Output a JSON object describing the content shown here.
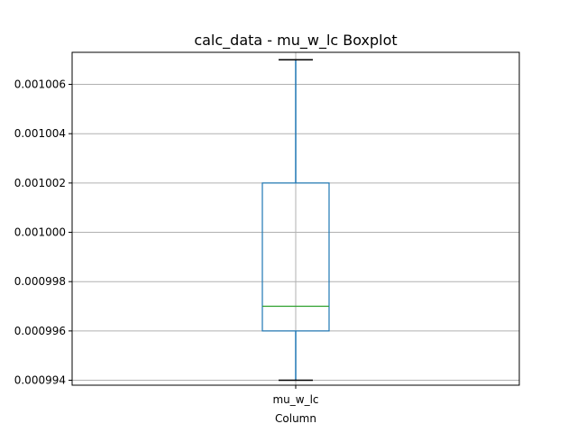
{
  "chart_data": {
    "type": "boxplot",
    "title": "calc_data - mu_w_lc Boxplot",
    "xlabel": "Column",
    "ylabel": "",
    "categories": [
      "mu_w_lc"
    ],
    "boxes": [
      {
        "name": "mu_w_lc",
        "whisker_low": 0.000994,
        "q1": 0.000996,
        "median": 0.000997,
        "q3": 0.001002,
        "whisker_high": 0.001007
      }
    ],
    "ylim": [
      0.0009938,
      0.0010073
    ],
    "yticks": [
      0.000994,
      0.000996,
      0.000998,
      0.001,
      0.001002,
      0.001004,
      0.001006
    ],
    "ytick_labels": [
      "0.000994",
      "0.000996",
      "0.000998",
      "0.001000",
      "0.001002",
      "0.001004",
      "0.001006"
    ],
    "grid": true,
    "colors": {
      "box": "#1f77b4",
      "median": "#2ca02c",
      "whisker_cap": "#000000",
      "grid": "#b0b0b0"
    }
  }
}
